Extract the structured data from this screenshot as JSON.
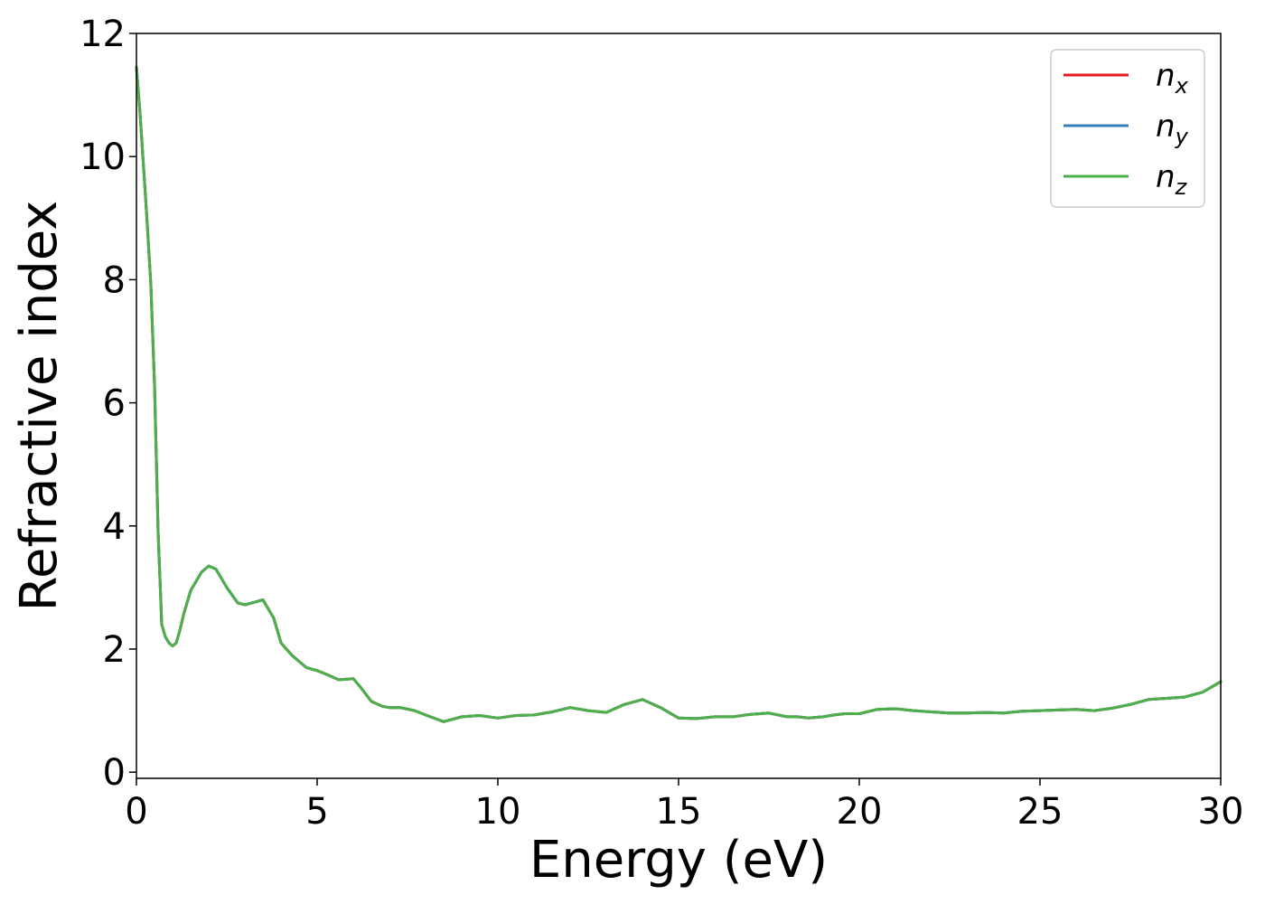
{
  "chart_data": {
    "type": "line",
    "title": "",
    "xlabel": "Energy (eV)",
    "ylabel": "Refractive index",
    "xlim": [
      0,
      30
    ],
    "ylim": [
      -0.1,
      12
    ],
    "xticks": [
      0,
      5,
      10,
      15,
      20,
      25,
      30
    ],
    "yticks": [
      0,
      2,
      4,
      6,
      8,
      10,
      12
    ],
    "xtick_labels": [
      "0",
      "5",
      "10",
      "15",
      "20",
      "25",
      "30"
    ],
    "ytick_labels": [
      "0",
      "2",
      "4",
      "6",
      "8",
      "10",
      "12"
    ],
    "grid": false,
    "legend_position": "top-right",
    "legend": [
      {
        "base": "n",
        "sub": "x",
        "color": "#e41a1c"
      },
      {
        "base": "n",
        "sub": "y",
        "color": "#377eb8"
      },
      {
        "base": "n",
        "sub": "z",
        "color": "#4daf4a"
      }
    ],
    "x": [
      0,
      0.1,
      0.2,
      0.3,
      0.4,
      0.5,
      0.6,
      0.7,
      0.8,
      0.9,
      1.0,
      1.1,
      1.2,
      1.3,
      1.5,
      1.6,
      1.7,
      1.8,
      2.0,
      2.2,
      2.5,
      2.8,
      3.0,
      3.2,
      3.5,
      3.8,
      4.0,
      4.3,
      4.5,
      4.7,
      5.0,
      5.3,
      5.6,
      6.0,
      6.2,
      6.5,
      6.8,
      7.0,
      7.3,
      7.7,
      8.0,
      8.5,
      9.0,
      9.5,
      10.0,
      10.5,
      11.0,
      11.5,
      12.0,
      12.5,
      13.0,
      13.5,
      14.0,
      14.5,
      15.0,
      15.5,
      16.0,
      16.5,
      17.0,
      17.5,
      18.0,
      18.3,
      18.6,
      19.0,
      19.3,
      19.6,
      20.0,
      20.5,
      21.0,
      21.5,
      22.0,
      22.5,
      23.0,
      23.5,
      24.0,
      24.5,
      25.0,
      25.5,
      26.0,
      26.5,
      27.0,
      27.5,
      28.0,
      28.5,
      29.0,
      29.5,
      30.0
    ],
    "series": [
      {
        "name": "n_x",
        "color": "#e41a1c",
        "values": [
          11.45,
          10.7,
          9.8,
          8.9,
          7.9,
          6.3,
          3.9,
          2.4,
          2.2,
          2.1,
          2.05,
          2.1,
          2.3,
          2.55,
          2.95,
          3.05,
          3.15,
          3.25,
          3.35,
          3.3,
          3.0,
          2.75,
          2.72,
          2.75,
          2.8,
          2.5,
          2.1,
          1.9,
          1.8,
          1.7,
          1.65,
          1.58,
          1.5,
          1.52,
          1.38,
          1.15,
          1.07,
          1.05,
          1.05,
          1.0,
          0.93,
          0.82,
          0.9,
          0.92,
          0.88,
          0.92,
          0.93,
          0.98,
          1.05,
          1.0,
          0.97,
          1.1,
          1.18,
          1.05,
          0.88,
          0.87,
          0.9,
          0.9,
          0.94,
          0.96,
          0.9,
          0.9,
          0.88,
          0.9,
          0.93,
          0.95,
          0.95,
          1.02,
          1.03,
          1.0,
          0.98,
          0.96,
          0.96,
          0.97,
          0.96,
          0.99,
          1.0,
          1.01,
          1.02,
          1.0,
          1.04,
          1.1,
          1.18,
          1.2,
          1.22,
          1.3,
          1.47
        ]
      },
      {
        "name": "n_y",
        "color": "#377eb8",
        "values": [
          11.45,
          10.7,
          9.8,
          8.9,
          7.9,
          6.3,
          3.9,
          2.4,
          2.2,
          2.1,
          2.05,
          2.1,
          2.3,
          2.55,
          2.95,
          3.05,
          3.15,
          3.25,
          3.35,
          3.3,
          3.0,
          2.75,
          2.72,
          2.75,
          2.8,
          2.5,
          2.1,
          1.9,
          1.8,
          1.7,
          1.65,
          1.58,
          1.5,
          1.52,
          1.38,
          1.15,
          1.07,
          1.05,
          1.05,
          1.0,
          0.93,
          0.82,
          0.9,
          0.92,
          0.88,
          0.92,
          0.93,
          0.98,
          1.05,
          1.0,
          0.97,
          1.1,
          1.18,
          1.05,
          0.88,
          0.87,
          0.9,
          0.9,
          0.94,
          0.96,
          0.9,
          0.9,
          0.88,
          0.9,
          0.93,
          0.95,
          0.95,
          1.02,
          1.03,
          1.0,
          0.98,
          0.96,
          0.96,
          0.97,
          0.96,
          0.99,
          1.0,
          1.01,
          1.02,
          1.0,
          1.04,
          1.1,
          1.18,
          1.2,
          1.22,
          1.3,
          1.47
        ]
      },
      {
        "name": "n_z",
        "color": "#4daf4a",
        "values": [
          11.45,
          10.7,
          9.8,
          8.9,
          7.9,
          6.3,
          3.9,
          2.4,
          2.2,
          2.1,
          2.05,
          2.1,
          2.3,
          2.55,
          2.95,
          3.05,
          3.15,
          3.25,
          3.35,
          3.3,
          3.0,
          2.75,
          2.72,
          2.75,
          2.8,
          2.5,
          2.1,
          1.9,
          1.8,
          1.7,
          1.65,
          1.58,
          1.5,
          1.52,
          1.38,
          1.15,
          1.07,
          1.05,
          1.05,
          1.0,
          0.93,
          0.82,
          0.9,
          0.92,
          0.88,
          0.92,
          0.93,
          0.98,
          1.05,
          1.0,
          0.97,
          1.1,
          1.18,
          1.05,
          0.88,
          0.87,
          0.9,
          0.9,
          0.94,
          0.96,
          0.9,
          0.9,
          0.88,
          0.9,
          0.93,
          0.95,
          0.95,
          1.02,
          1.03,
          1.0,
          0.98,
          0.96,
          0.96,
          0.97,
          0.96,
          0.99,
          1.0,
          1.01,
          1.02,
          1.0,
          1.04,
          1.1,
          1.18,
          1.2,
          1.22,
          1.3,
          1.47
        ]
      }
    ]
  }
}
